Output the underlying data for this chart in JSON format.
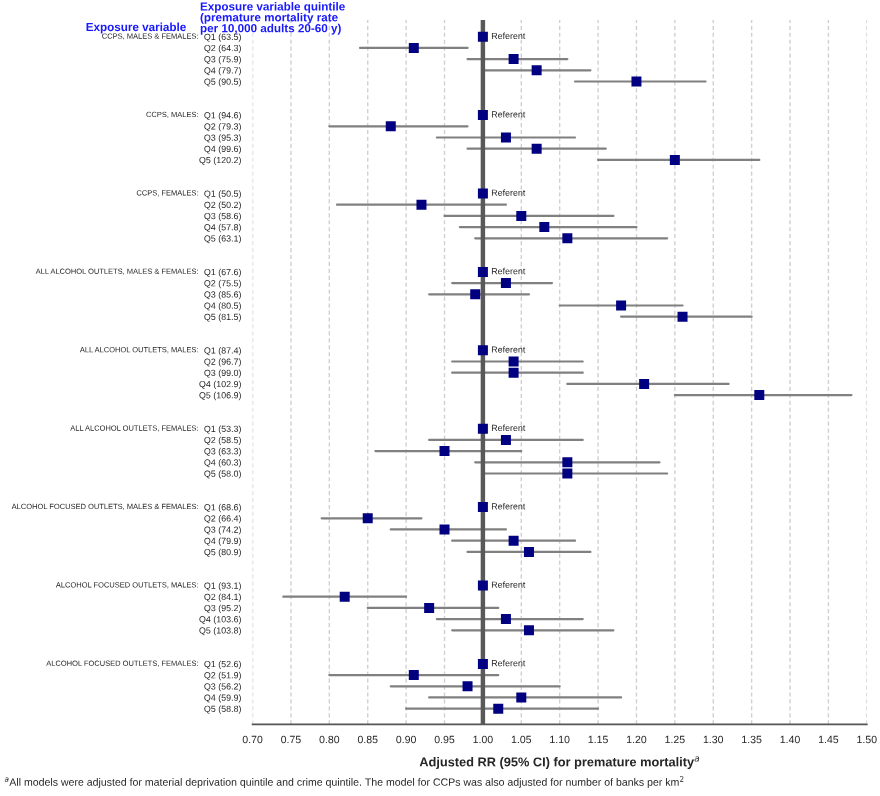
{
  "chart_data": {
    "type": "scatter",
    "orientation": "horizontal",
    "xlabel": "Adjusted RR (95% CI) for premature mortality$^{a}$",
    "categories": [
      "Q1 (63.5)",
      "Q2 (64.3)",
      "Q3 (75.9)",
      "Q4 (79.7)",
      "Q5 (90.5)",
      null,
      null,
      "Q1 (94.6)",
      "Q2 (79.3)",
      "Q3 (95.3)",
      "Q4 (99.6)",
      "Q5 (120.2)",
      null,
      null,
      "Q1 (50.5)",
      "Q2 (50.2)",
      "Q3 (58.6)",
      "Q4 (57.8)",
      "Q5 (63.1)",
      null,
      null,
      "Q1 (67.6)",
      "Q2 (75.5)",
      "Q3 (85.6)",
      "Q4 (80.5)",
      "Q5 (81.5)",
      null,
      null,
      "Q1 (87.4)",
      "Q2 (96.7)",
      "Q3 (99.0)",
      "Q4 (102.9)",
      "Q5 (106.9)",
      null,
      null,
      "Q1 (53.3)",
      "Q2 (58.5)",
      "Q3 (63.3)",
      "Q4 (60.3)",
      "Q5 (58.0)",
      null,
      null,
      "Q1 (68.6)",
      "Q2 (66.4)",
      "Q3 (74.2)",
      "Q4 (79.9)",
      "Q5 (80.9)",
      null,
      null,
      "Q1 (93.1)",
      "Q2 (84.1)",
      "Q3 (95.2)",
      "Q4 (103.6)",
      "Q5 (103.8)",
      null,
      null,
      "Q1 (52.6)",
      "Q2 (51.9)",
      "Q3 (56.2)",
      "Q4 (59.9)",
      "Q5 (58.8)"
    ],
    "series": [
      {
        "color": "#000080",
        "values": [
          1.0,
          0.91,
          1.04,
          1.07,
          1.2,
          null,
          null,
          1.0,
          0.88,
          1.03,
          1.07,
          1.25,
          null,
          null,
          1.0,
          0.92,
          1.05,
          1.08,
          1.11,
          null,
          null,
          1.0,
          1.03,
          0.99,
          1.18,
          1.26,
          null,
          null,
          1.0,
          1.04,
          1.04,
          1.21,
          1.36,
          null,
          null,
          1.0,
          1.03,
          0.95,
          1.11,
          1.11,
          null,
          null,
          1.0,
          0.85,
          0.95,
          1.04,
          1.06,
          null,
          null,
          1.0,
          0.82,
          0.93,
          1.03,
          1.06,
          null,
          null,
          1.0,
          0.91,
          0.98,
          1.05,
          1.02
        ],
        "errors": [
          null,
          [
            0.84,
            0.98
          ],
          [
            0.98,
            1.11
          ],
          [
            1.0,
            1.14
          ],
          [
            1.12,
            1.29
          ],
          null,
          null,
          null,
          [
            0.8,
            0.98
          ],
          [
            0.94,
            1.12
          ],
          [
            0.98,
            1.16
          ],
          [
            1.15,
            1.36
          ],
          null,
          null,
          null,
          [
            0.81,
            1.03
          ],
          [
            0.95,
            1.17
          ],
          [
            0.97,
            1.2
          ],
          [
            0.99,
            1.24
          ],
          null,
          null,
          null,
          [
            0.96,
            1.09
          ],
          [
            0.93,
            1.06
          ],
          [
            1.1,
            1.26
          ],
          [
            1.18,
            1.35
          ],
          null,
          null,
          null,
          [
            0.96,
            1.13
          ],
          [
            0.96,
            1.13
          ],
          [
            1.11,
            1.32
          ],
          [
            1.25,
            1.48
          ],
          null,
          null,
          null,
          [
            0.93,
            1.13
          ],
          [
            0.86,
            1.05
          ],
          [
            0.99,
            1.23
          ],
          [
            1.0,
            1.24
          ],
          null,
          null,
          null,
          [
            0.79,
            0.92
          ],
          [
            0.88,
            1.03
          ],
          [
            0.96,
            1.12
          ],
          [
            0.98,
            1.14
          ],
          null,
          null,
          null,
          [
            0.74,
            0.9
          ],
          [
            0.85,
            1.02
          ],
          [
            0.94,
            1.13
          ],
          [
            0.96,
            1.17
          ],
          null,
          null,
          null,
          [
            0.8,
            1.02
          ],
          [
            0.88,
            1.1
          ],
          [
            0.93,
            1.18
          ],
          [
            0.9,
            1.15
          ]
        ],
        "value_labels": [
          "Referent",
          null,
          null,
          null,
          null,
          null,
          null,
          "Referent",
          null,
          null,
          null,
          null,
          null,
          null,
          "Referent",
          null,
          null,
          null,
          null,
          null,
          null,
          "Referent",
          null,
          null,
          null,
          null,
          null,
          null,
          "Referent",
          null,
          null,
          null,
          null,
          null,
          null,
          "Referent",
          null,
          null,
          null,
          null,
          null,
          null,
          "Referent",
          null,
          null,
          null,
          null,
          null,
          null,
          "Referent",
          null,
          null,
          null,
          null,
          null,
          null,
          "Referent",
          null,
          null,
          null,
          null
        ]
      }
    ],
    "xlim": [
      0.7,
      1.5
    ],
    "xticks": [
      {
        "value": 0.7,
        "label": "0.70"
      },
      {
        "value": 0.75,
        "label": "0.75"
      },
      {
        "value": 0.8,
        "label": "0.80"
      },
      {
        "value": 0.85,
        "label": "0.85"
      },
      {
        "value": 0.9,
        "label": "0.90"
      },
      {
        "value": 0.95,
        "label": "0.95"
      },
      {
        "value": 1.0,
        "label": "1.00"
      },
      {
        "value": 1.05,
        "label": "1.05"
      },
      {
        "value": 1.1,
        "label": "1.10"
      },
      {
        "value": 1.15,
        "label": "1.15"
      },
      {
        "value": 1.2,
        "label": "1.20"
      },
      {
        "value": 1.25,
        "label": "1.25"
      },
      {
        "value": 1.3,
        "label": "1.30"
      },
      {
        "value": 1.35,
        "label": "1.35"
      },
      {
        "value": 1.4,
        "label": "1.40"
      },
      {
        "value": 1.45,
        "label": "1.45"
      },
      {
        "value": 1.5,
        "label": "1.50"
      }
    ],
    "ref_lines": [
      {
        "axis": "x",
        "value": 1.0,
        "color": "#595959",
        "line_style": "solid"
      }
    ],
    "grid": "x",
    "marker": "square",
    "annotations": [
      "Exposure variable",
      "Exposure variable quintile\n(premature mortality rate\nper 10,000 adults 20-60 y)",
      "CCPS, MALES & FEMALES:",
      "CCPS, MALES:",
      "CCPS, FEMALES:",
      "ALL ALCOHOL OUTLETS, MALES & FEMALES:",
      "ALL ALCOHOL OUTLETS, MALES:",
      "ALL ALCOHOL OUTLETS, FEMALES:",
      "ALCOHOL FOCUSED OUTLETS, MALES & FEMALES:",
      "ALCOHOL FOCUSED OUTLETS, MALES:",
      "ALCOHOL FOCUSED OUTLETS, FEMALES:",
      "$^{a}$All models were adjusted for material deprivation quintile and crime quintile. The model for CCPs was also adjusted for number of banks per km$^{2}$"
    ]
  }
}
